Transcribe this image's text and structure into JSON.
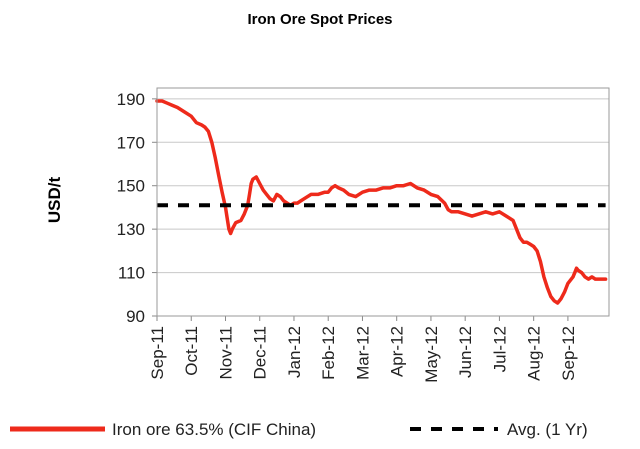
{
  "chart_data": {
    "type": "line",
    "title": "Iron Ore Spot Prices",
    "xlabel": "",
    "ylabel": "USD/t",
    "ylim": [
      90,
      195
    ],
    "yticks": [
      90,
      110,
      130,
      150,
      170,
      190
    ],
    "xlim": [
      0,
      13.2
    ],
    "categories": [
      "Sep-11",
      "Oct-11",
      "Nov-11",
      "Dec-11",
      "Jan-12",
      "Feb-12",
      "Mar-12",
      "Apr-12",
      "May-12",
      "Jun-12",
      "Jul-12",
      "Aug-12",
      "Sep-12"
    ],
    "grid": true,
    "legend_position": "bottom",
    "series": [
      {
        "name": "Iron ore 63.5% (CIF China)",
        "color": "#ee2a1b",
        "style": "solid",
        "x": [
          0,
          0.15,
          0.3,
          0.45,
          0.6,
          0.8,
          1.0,
          1.15,
          1.3,
          1.4,
          1.5,
          1.6,
          1.7,
          1.8,
          1.9,
          2.0,
          2.05,
          2.1,
          2.15,
          2.2,
          2.3,
          2.45,
          2.55,
          2.65,
          2.7,
          2.75,
          2.8,
          2.9,
          3.0,
          3.1,
          3.2,
          3.3,
          3.4,
          3.5,
          3.6,
          3.7,
          3.8,
          3.9,
          4.0,
          4.1,
          4.2,
          4.3,
          4.5,
          4.7,
          4.9,
          5.0,
          5.1,
          5.2,
          5.3,
          5.45,
          5.6,
          5.8,
          6.0,
          6.2,
          6.4,
          6.6,
          6.8,
          7.0,
          7.2,
          7.4,
          7.6,
          7.8,
          8.0,
          8.2,
          8.4,
          8.5,
          8.6,
          8.8,
          9.0,
          9.2,
          9.4,
          9.6,
          9.8,
          10.0,
          10.2,
          10.4,
          10.6,
          10.7,
          10.8,
          10.9,
          11.0,
          11.1,
          11.2,
          11.3,
          11.4,
          11.5,
          11.6,
          11.7,
          11.8,
          11.9,
          12.0,
          12.1,
          12.15,
          12.2,
          12.25,
          12.3,
          12.4,
          12.5,
          12.6,
          12.7,
          12.8,
          12.9,
          13.0,
          13.1
        ],
        "y": [
          189,
          189,
          188,
          187,
          186,
          184,
          182,
          179,
          178,
          177,
          175,
          170,
          163,
          155,
          147,
          140,
          135,
          130,
          128,
          130,
          133,
          134,
          137,
          141,
          146,
          151,
          153,
          154,
          151,
          148,
          146,
          144,
          143,
          146,
          145,
          143,
          142,
          141,
          142,
          142,
          143,
          144,
          146,
          146,
          147,
          147,
          149,
          150,
          149,
          148,
          146,
          145,
          147,
          148,
          148,
          149,
          149,
          150,
          150,
          151,
          149,
          148,
          146,
          145,
          142,
          139,
          138,
          138,
          137,
          136,
          137,
          138,
          137,
          138,
          136,
          134,
          126,
          124,
          124,
          123,
          122,
          120,
          115,
          108,
          103,
          99,
          97,
          96,
          98,
          101,
          105,
          107,
          108,
          110,
          112,
          111,
          110,
          108,
          107,
          108,
          107,
          107,
          107,
          107
        ]
      },
      {
        "name": "Avg. (1 Yr)",
        "color": "#000000",
        "style": "dashed",
        "x": [
          0,
          13.1
        ],
        "y": [
          141,
          141
        ]
      }
    ]
  }
}
